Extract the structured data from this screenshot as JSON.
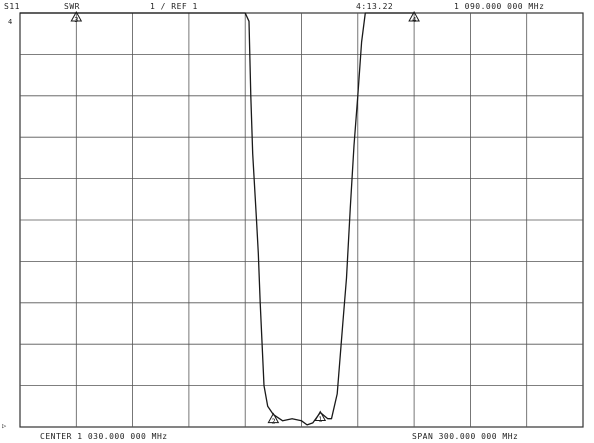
{
  "header": {
    "channel": "S11",
    "format": "SWR",
    "scale": "1 / REF 1",
    "marker_readout": "4:13.22",
    "marker_frequency": "1 090.000 000 MHz"
  },
  "footer": {
    "center": "CENTER 1 030.000 000 MHz",
    "span": "SPAN 300.000 000 MHz"
  },
  "left_marks": {
    "top": "4",
    "bottom": "▷"
  },
  "colors": {
    "trace": "#1a1a1a",
    "grid": "#555555",
    "background": "#ffffff"
  },
  "chart_data": {
    "type": "line",
    "title": "",
    "xlabel": "",
    "ylabel": "",
    "xlim": [
      880,
      1180
    ],
    "ylim": [
      1,
      11
    ],
    "grid": true,
    "x_divisions": 10,
    "y_divisions": 10,
    "series": [
      {
        "values": [
          {
            "x": 880,
            "y": 11.0
          },
          {
            "x": 1000,
            "y": 11.0
          },
          {
            "x": 1002,
            "y": 10.8
          },
          {
            "x": 1003,
            "y": 9.0
          },
          {
            "x": 1004,
            "y": 7.6
          },
          {
            "x": 1006,
            "y": 6.0
          },
          {
            "x": 1007,
            "y": 5.2
          },
          {
            "x": 1008,
            "y": 4.0
          },
          {
            "x": 1010,
            "y": 2.0
          },
          {
            "x": 1012,
            "y": 1.5
          },
          {
            "x": 1015,
            "y": 1.3
          },
          {
            "x": 1020,
            "y": 1.15
          },
          {
            "x": 1025,
            "y": 1.2
          },
          {
            "x": 1030,
            "y": 1.15
          },
          {
            "x": 1033,
            "y": 1.05
          },
          {
            "x": 1036,
            "y": 1.1
          },
          {
            "x": 1040,
            "y": 1.35
          },
          {
            "x": 1044,
            "y": 1.2
          },
          {
            "x": 1046,
            "y": 1.2
          },
          {
            "x": 1049,
            "y": 1.8
          },
          {
            "x": 1052,
            "y": 3.5
          },
          {
            "x": 1054,
            "y": 4.6
          },
          {
            "x": 1056,
            "y": 6.3
          },
          {
            "x": 1058,
            "y": 7.8
          },
          {
            "x": 1060,
            "y": 9.0
          },
          {
            "x": 1062,
            "y": 10.3
          },
          {
            "x": 1064,
            "y": 11.0
          },
          {
            "x": 1090,
            "y": 11.0
          }
        ]
      }
    ],
    "markers": [
      {
        "label": "1",
        "x": 1040,
        "y": 1.35
      },
      {
        "label": "2",
        "x": 1015,
        "y": 1.3
      },
      {
        "label": "3",
        "x": 910,
        "y": 11.0
      },
      {
        "label": "4",
        "x": 1090,
        "y": 11.0
      }
    ]
  }
}
